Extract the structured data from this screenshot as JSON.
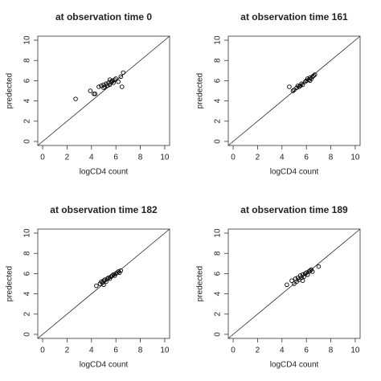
{
  "chart_data": [
    {
      "type": "scatter",
      "title": "at observation time 0",
      "xlabel": "logCD4 count",
      "ylabel": "predected",
      "x": [
        2.7,
        3.9,
        4.2,
        4.3,
        4.6,
        4.8,
        5.0,
        5.1,
        5.2,
        5.3,
        5.4,
        5.5,
        5.6,
        5.7,
        5.8,
        5.9,
        6.0,
        6.2,
        6.4,
        6.5,
        6.6,
        5.0,
        5.5
      ],
      "values": [
        4.2,
        5.0,
        4.7,
        4.7,
        5.4,
        5.5,
        5.6,
        5.4,
        5.7,
        5.5,
        5.8,
        5.6,
        5.9,
        6.0,
        5.8,
        6.1,
        6.2,
        5.9,
        6.4,
        5.4,
        6.8,
        5.3,
        6.1
      ],
      "xlim": [
        -0.4,
        10.4
      ],
      "ylim": [
        -0.4,
        10.4
      ],
      "xticks": [
        0,
        2,
        4,
        6,
        8,
        10
      ],
      "yticks": [
        0,
        2,
        4,
        6,
        8,
        10
      ],
      "color": "#000000",
      "identity_line": true
    },
    {
      "type": "scatter",
      "title": "at observation time 161",
      "xlabel": "logCD4 count",
      "ylabel": "predected",
      "x": [
        4.6,
        4.9,
        5.0,
        5.2,
        5.3,
        5.5,
        5.6,
        5.7,
        5.9,
        6.0,
        6.1,
        6.2,
        6.3,
        6.4,
        6.5,
        6.6,
        6.7,
        5.4,
        6.3
      ],
      "values": [
        5.4,
        5.0,
        5.1,
        5.3,
        5.5,
        5.5,
        5.7,
        5.6,
        5.9,
        6.0,
        6.2,
        6.1,
        6.3,
        6.2,
        6.4,
        6.5,
        6.6,
        5.4,
        6.0
      ],
      "xlim": [
        -0.4,
        10.4
      ],
      "ylim": [
        -0.4,
        10.4
      ],
      "xticks": [
        0,
        2,
        4,
        6,
        8,
        10
      ],
      "yticks": [
        0,
        2,
        4,
        6,
        8,
        10
      ],
      "color": "#000000",
      "identity_line": true
    },
    {
      "type": "scatter",
      "title": "at observation time 182",
      "xlabel": "logCD4 count",
      "ylabel": "predected",
      "x": [
        4.4,
        4.7,
        4.8,
        4.9,
        5.0,
        5.1,
        5.2,
        5.3,
        5.4,
        5.5,
        5.6,
        5.7,
        5.8,
        5.9,
        6.0,
        6.1,
        6.2,
        6.3,
        6.4,
        5.0
      ],
      "values": [
        4.8,
        5.0,
        5.2,
        5.1,
        5.3,
        5.4,
        5.2,
        5.5,
        5.6,
        5.5,
        5.7,
        5.8,
        5.9,
        5.8,
        6.0,
        6.1,
        6.2,
        6.1,
        6.3,
        4.9
      ],
      "xlim": [
        -0.4,
        10.4
      ],
      "ylim": [
        -0.4,
        10.4
      ],
      "xticks": [
        0,
        2,
        4,
        6,
        8,
        10
      ],
      "yticks": [
        0,
        2,
        4,
        6,
        8,
        10
      ],
      "color": "#000000",
      "identity_line": true
    },
    {
      "type": "scatter",
      "title": "at observation time 189",
      "xlabel": "logCD4 count",
      "ylabel": "predected",
      "x": [
        4.4,
        4.8,
        5.0,
        5.1,
        5.2,
        5.3,
        5.4,
        5.5,
        5.6,
        5.7,
        5.8,
        5.9,
        6.0,
        6.1,
        6.2,
        6.3,
        6.4,
        6.5,
        7.0,
        5.7
      ],
      "values": [
        4.9,
        5.3,
        5.0,
        5.5,
        5.2,
        5.6,
        5.4,
        5.8,
        5.6,
        5.9,
        5.7,
        6.0,
        6.1,
        5.9,
        6.2,
        6.3,
        6.4,
        6.2,
        6.7,
        5.3
      ],
      "xlim": [
        -0.4,
        10.4
      ],
      "ylim": [
        -0.4,
        10.4
      ],
      "xticks": [
        0,
        2,
        4,
        6,
        8,
        10
      ],
      "yticks": [
        0,
        2,
        4,
        6,
        8,
        10
      ],
      "color": "#000000",
      "identity_line": true
    }
  ]
}
